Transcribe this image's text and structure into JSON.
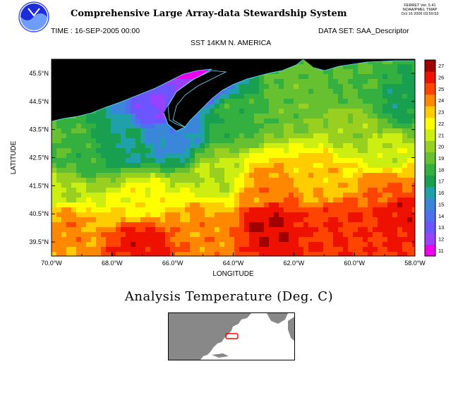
{
  "header": {
    "system_title": "Comprehensive Large Array-data Stewardship System",
    "ferret_line1": "FERRET Ver. 5.41",
    "ferret_line2": "NOAA/PMEL TMAP",
    "ferret_line3": "Oct 16 2006 03:59:53",
    "time_label": "TIME : 16-SEP-2005 00:00",
    "dataset_label": "DATA SET: SAA_Descriptor",
    "plot_title": "SST 14KM N. AMERICA"
  },
  "footer": {
    "analysis_title": "Analysis Temperature (Deg. C)"
  },
  "colors": {
    "land": "#000000",
    "coastline": "#66e0ff",
    "inset_ocean": "#ffffff",
    "inset_land": "#888888",
    "inset_region": "#ff0000"
  },
  "chart_data": {
    "type": "heatmap",
    "title": "SST 14KM N. AMERICA",
    "xlabel": "LONGITUDE",
    "ylabel": "LATITUDE",
    "xlim": [
      -70.0,
      -58.0
    ],
    "ylim": [
      39.0,
      46.0
    ],
    "x_ticks": [
      -70,
      -68,
      -66,
      -64,
      -62,
      -60,
      -58
    ],
    "x_tick_labels": [
      "70.0°W",
      "68.0°W",
      "66.0°W",
      "64.0°W",
      "62.0°W",
      "60.0°W",
      "58.0°W"
    ],
    "y_ticks": [
      39.5,
      40.5,
      41.5,
      42.5,
      43.5,
      44.5,
      45.5
    ],
    "y_tick_labels": [
      "39.5°N",
      "40.5°N",
      "41.5°N",
      "42.5°N",
      "43.5°N",
      "44.5°N",
      "45.5°N"
    ],
    "colorbar": {
      "levels": [
        11,
        12,
        13,
        14,
        15,
        16,
        17,
        18,
        19,
        20,
        21,
        22,
        23,
        24,
        25,
        26,
        27
      ],
      "colors": [
        "#ee00ee",
        "#9a40ff",
        "#6a55ff",
        "#4d6ff0",
        "#3a86d8",
        "#20a0a8",
        "#18a050",
        "#33b040",
        "#66c030",
        "#99d020",
        "#ccee10",
        "#ffff00",
        "#ffcc00",
        "#ff8800",
        "#ff4400",
        "#ee1100",
        "#a00000"
      ]
    },
    "field_description_note": "",
    "field_anchors": [
      {
        "lon": -70.0,
        "lat": 43.5,
        "sst": 19.0
      },
      {
        "lon": -69.0,
        "lat": 42.5,
        "sst": 18.5
      },
      {
        "lon": -67.5,
        "lat": 43.0,
        "sst": 17.0
      },
      {
        "lon": -66.5,
        "lat": 44.3,
        "sst": 13.0
      },
      {
        "lon": -66.0,
        "lat": 43.3,
        "sst": 15.5
      },
      {
        "lon": -65.0,
        "lat": 45.3,
        "sst": 11.5
      },
      {
        "lon": -64.0,
        "lat": 44.0,
        "sst": 18.5
      },
      {
        "lon": -62.0,
        "lat": 44.5,
        "sst": 19.5
      },
      {
        "lon": -60.0,
        "lat": 45.0,
        "sst": 19.0
      },
      {
        "lon": -58.5,
        "lat": 44.5,
        "sst": 17.5
      },
      {
        "lon": -60.0,
        "lat": 43.5,
        "sst": 20.5
      },
      {
        "lon": -59.0,
        "lat": 42.5,
        "sst": 21.5
      },
      {
        "lon": -69.5,
        "lat": 41.3,
        "sst": 21.0
      },
      {
        "lon": -67.0,
        "lat": 41.0,
        "sst": 22.5
      },
      {
        "lon": -64.5,
        "lat": 41.8,
        "sst": 21.0
      },
      {
        "lon": -63.0,
        "lat": 41.3,
        "sst": 24.5
      },
      {
        "lon": -61.0,
        "lat": 41.8,
        "sst": 23.5
      },
      {
        "lon": -59.0,
        "lat": 41.5,
        "sst": 25.0
      },
      {
        "lon": -69.5,
        "lat": 40.2,
        "sst": 24.5
      },
      {
        "lon": -67.0,
        "lat": 39.5,
        "sst": 26.5
      },
      {
        "lon": -65.0,
        "lat": 40.0,
        "sst": 24.5
      },
      {
        "lon": -62.8,
        "lat": 40.2,
        "sst": 27.0
      },
      {
        "lon": -60.5,
        "lat": 40.0,
        "sst": 26.0
      },
      {
        "lon": -58.5,
        "lat": 40.5,
        "sst": 26.5
      }
    ]
  }
}
